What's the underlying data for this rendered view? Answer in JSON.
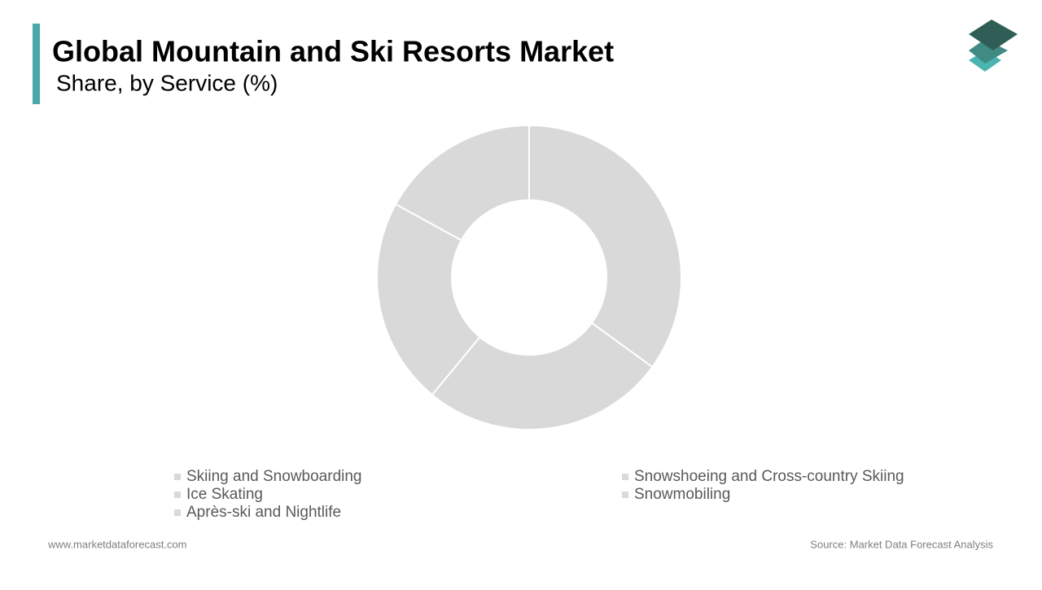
{
  "chart_data": {
    "type": "donut",
    "title": "Global Mountain and Ski Resorts Market",
    "subtitle": "Share, by Service (%)",
    "categories": [
      "Skiing and Snowboarding",
      "Snowshoeing and Cross-country Skiing",
      "Ice Skating",
      "Snowmobiling",
      "Après-ski and Nightlife"
    ],
    "values": [
      35,
      26,
      22,
      17,
      0
    ],
    "color": "#d9d9d9",
    "website": "www.marketdataforecast.com",
    "source": "Source: Market Data Forecast Analysis"
  }
}
